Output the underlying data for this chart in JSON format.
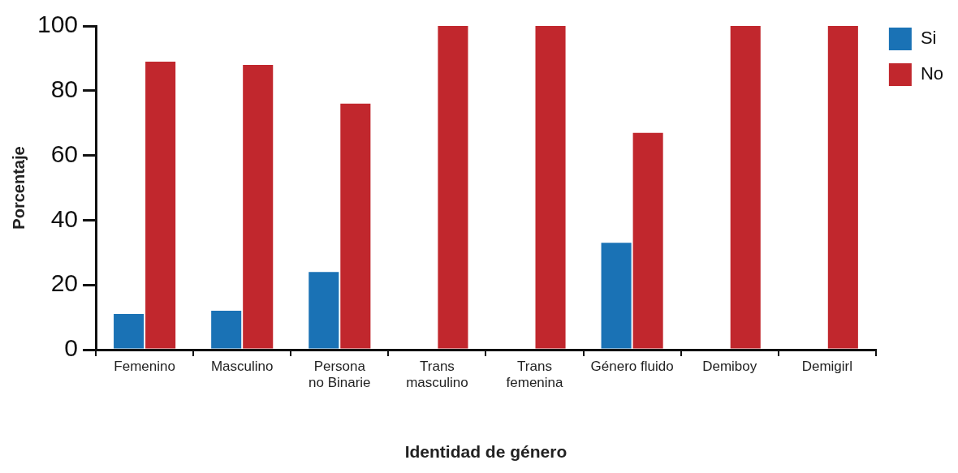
{
  "chart_data": {
    "type": "bar",
    "xlabel": "Identidad de género",
    "ylabel": "Porcentaje",
    "categories": [
      "Femenino",
      "Masculino",
      "Persona no Binarie",
      "Trans masculino",
      "Trans femenina",
      "Género fluido",
      "Demiboy",
      "Demigirl"
    ],
    "series": [
      {
        "name": "Si",
        "color": "#1a72b5",
        "values": [
          11,
          12,
          24,
          0,
          0,
          33,
          0,
          0
        ]
      },
      {
        "name": "No",
        "color": "#c1272d",
        "values": [
          89,
          88,
          76,
          100,
          100,
          67,
          100,
          100
        ]
      }
    ],
    "ylim": [
      0,
      100
    ],
    "yticks": [
      0,
      20,
      40,
      60,
      80,
      100
    ],
    "grid": false,
    "legend": "top right"
  }
}
